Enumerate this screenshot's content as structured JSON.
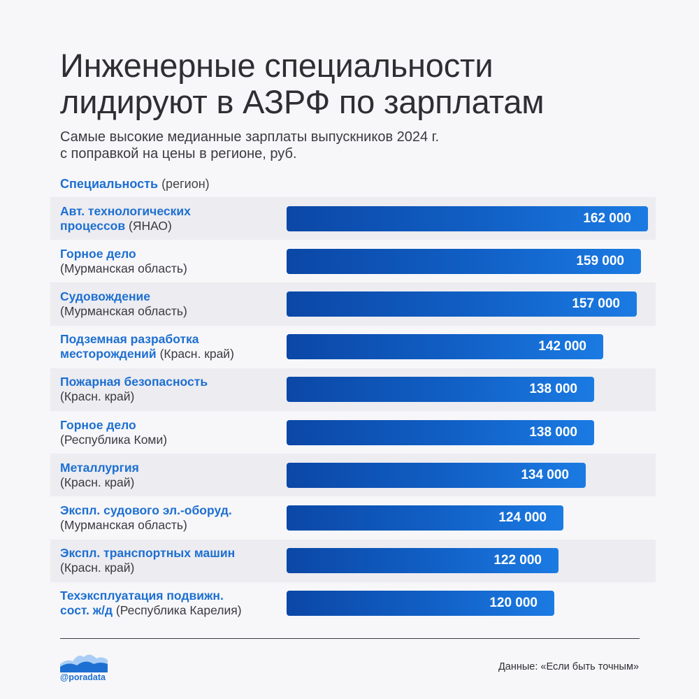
{
  "header": {
    "title_lines": [
      "Инженерные специальности",
      "лидируют в АЗРФ по зарплатам"
    ],
    "subtitle_lines": [
      "Самые высокие медианные зарплаты выпускников 2024 г.",
      "с поправкой на цены в регионе, руб."
    ],
    "column_label_strong": "Специальность",
    "column_label_muted": "(регион)"
  },
  "chart_data": {
    "type": "bar",
    "orientation": "horizontal",
    "title": "Инженерные специальности лидируют в АЗРФ по зарплатам",
    "subtitle": "Самые высокие медианные зарплаты выпускников 2024 г. с поправкой на цены в регионе, руб.",
    "max_value": 162000,
    "rows": [
      {
        "label_lines": [
          [
            {
              "t": "Авт. технологических",
              "s": true
            }
          ],
          [
            {
              "t": "процессов",
              "s": true
            },
            {
              "t": " (ЯНАО)",
              "s": false
            }
          ]
        ],
        "value": 162000,
        "value_label": "162 000"
      },
      {
        "label_lines": [
          [
            {
              "t": "Горное дело",
              "s": true
            }
          ],
          [
            {
              "t": "(Мурманская область)",
              "s": false
            }
          ]
        ],
        "value": 159000,
        "value_label": "159 000"
      },
      {
        "label_lines": [
          [
            {
              "t": "Судовождение",
              "s": true
            }
          ],
          [
            {
              "t": "(Мурманская область)",
              "s": false
            }
          ]
        ],
        "value": 157000,
        "value_label": "157 000"
      },
      {
        "label_lines": [
          [
            {
              "t": "Подземная разработка",
              "s": true
            }
          ],
          [
            {
              "t": "месторождений",
              "s": true
            },
            {
              "t": " (Красн. край)",
              "s": false
            }
          ]
        ],
        "value": 142000,
        "value_label": "142 000"
      },
      {
        "label_lines": [
          [
            {
              "t": "Пожарная безопасность",
              "s": true
            }
          ],
          [
            {
              "t": "(Красн. край)",
              "s": false
            }
          ]
        ],
        "value": 138000,
        "value_label": "138 000"
      },
      {
        "label_lines": [
          [
            {
              "t": "Горное дело",
              "s": true
            }
          ],
          [
            {
              "t": "(Республика Коми)",
              "s": false
            }
          ]
        ],
        "value": 138000,
        "value_label": "138 000"
      },
      {
        "label_lines": [
          [
            {
              "t": "Металлургия",
              "s": true
            }
          ],
          [
            {
              "t": "(Красн. край)",
              "s": false
            }
          ]
        ],
        "value": 134000,
        "value_label": "134 000"
      },
      {
        "label_lines": [
          [
            {
              "t": "Экспл. судового эл.-оборуд.",
              "s": true
            }
          ],
          [
            {
              "t": "(Мурманская область)",
              "s": false
            }
          ]
        ],
        "value": 124000,
        "value_label": "124 000"
      },
      {
        "label_lines": [
          [
            {
              "t": "Экспл. транспортных машин",
              "s": true
            }
          ],
          [
            {
              "t": "(Красн. край)",
              "s": false
            }
          ]
        ],
        "value": 122000,
        "value_label": "122 000"
      },
      {
        "label_lines": [
          [
            {
              "t": "Техэксплуатация подвижн.",
              "s": true
            }
          ],
          [
            {
              "t": "сост. ж/д",
              "s": true
            },
            {
              "t": " (Республика Карелия)",
              "s": false
            }
          ]
        ],
        "value": 120000,
        "value_label": "120 000"
      }
    ]
  },
  "footer": {
    "handle": "@poradata",
    "source": "Данные: «Если быть точным»",
    "logo_icon": "mountains-wave-logo"
  },
  "colors": {
    "accent": "#1d6fd1",
    "bar_start": "#0b47a6",
    "bar_end": "#1b7be3",
    "text": "#2e2e33",
    "row_stripe": "#ececf1",
    "background": "#f7f7f9"
  }
}
